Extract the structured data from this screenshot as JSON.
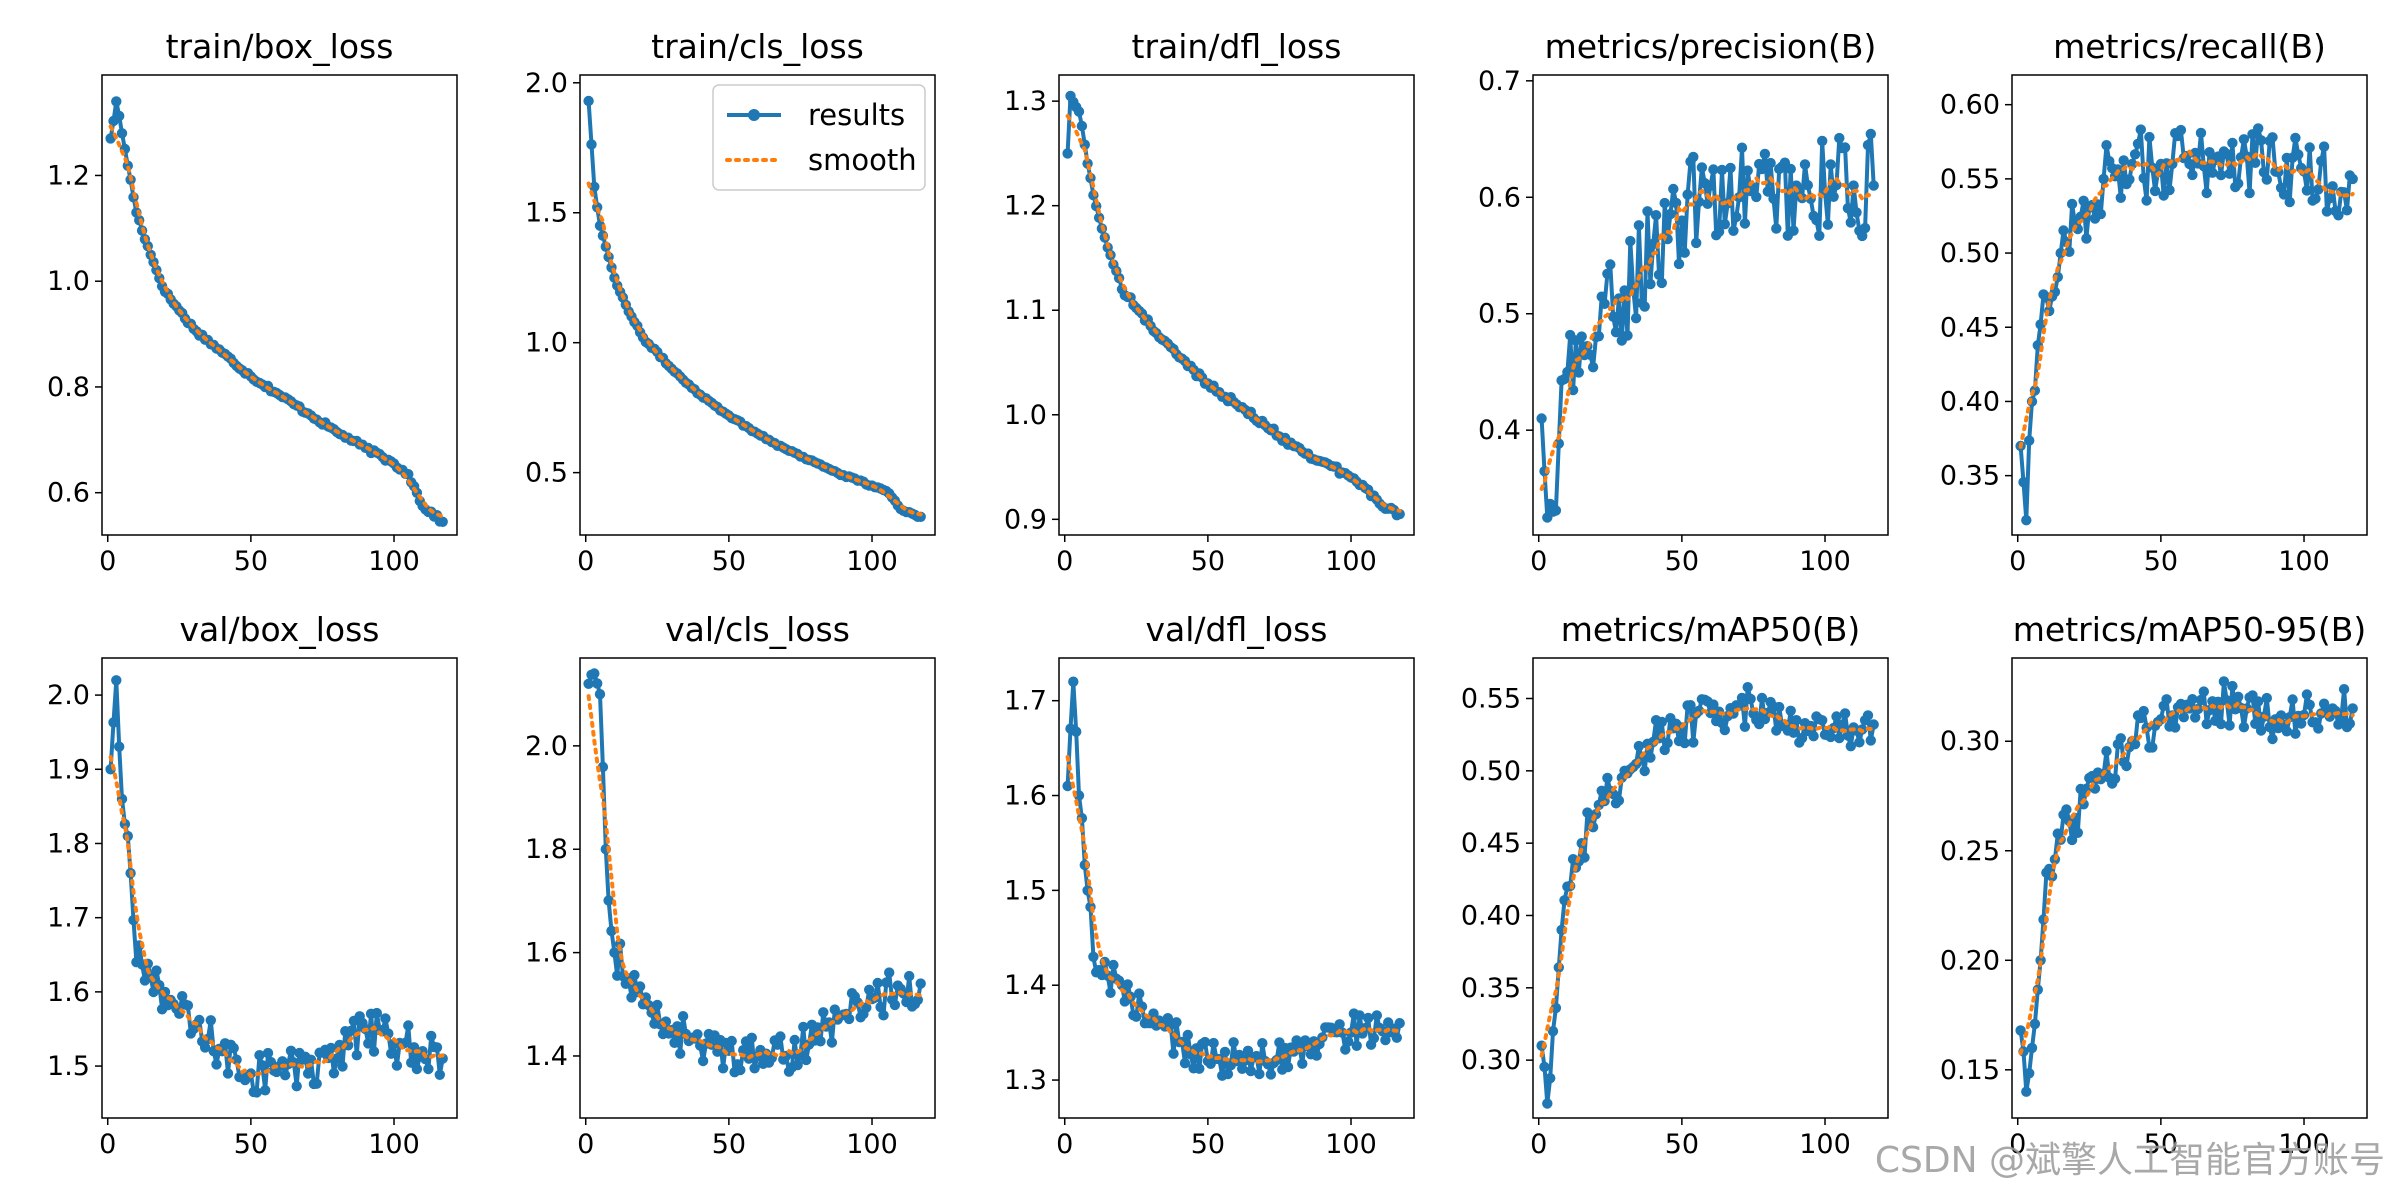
{
  "figure": {
    "watermark": "CSDN @斌擎人工智能官方账号",
    "colors": {
      "results": "#1f77b4",
      "smooth": "#ff7f0e",
      "axes": "#000000"
    }
  },
  "chart_data": [
    {
      "type": "line",
      "title": "train/box_loss",
      "xlim": [
        -2,
        122
      ],
      "ylim": [
        0.52,
        1.39
      ],
      "xticks": [
        0,
        50,
        100
      ],
      "yticks": [
        0.6,
        0.8,
        1.0,
        1.2
      ],
      "ytick_labels": [
        "0.6",
        "0.8",
        "1.0",
        "1.2"
      ],
      "decreasing": true,
      "noise": 0.004,
      "shape": [
        [
          1,
          1.27
        ],
        [
          3,
          1.34
        ],
        [
          6,
          1.25
        ],
        [
          10,
          1.13
        ],
        [
          15,
          1.05
        ],
        [
          20,
          0.98
        ],
        [
          30,
          0.91
        ],
        [
          40,
          0.865
        ],
        [
          50,
          0.82
        ],
        [
          60,
          0.785
        ],
        [
          70,
          0.75
        ],
        [
          80,
          0.715
        ],
        [
          90,
          0.685
        ],
        [
          100,
          0.655
        ],
        [
          105,
          0.635
        ],
        [
          110,
          0.575
        ],
        [
          117,
          0.545
        ]
      ]
    },
    {
      "type": "line",
      "title": "train/cls_loss",
      "xlim": [
        -2,
        122
      ],
      "ylim": [
        0.26,
        2.03
      ],
      "xticks": [
        0,
        50,
        100
      ],
      "yticks": [
        0.5,
        1.0,
        1.5,
        2.0
      ],
      "ytick_labels": [
        "0.5",
        "1.0",
        "1.5",
        "2.0"
      ],
      "decreasing": true,
      "noise": 0.005,
      "legend": {
        "entries": [
          "results",
          "smooth"
        ],
        "position": "upper-right"
      },
      "shape": [
        [
          1,
          1.93
        ],
        [
          3,
          1.6
        ],
        [
          5,
          1.45
        ],
        [
          10,
          1.25
        ],
        [
          15,
          1.12
        ],
        [
          20,
          1.02
        ],
        [
          30,
          0.9
        ],
        [
          40,
          0.8
        ],
        [
          50,
          0.72
        ],
        [
          60,
          0.65
        ],
        [
          70,
          0.59
        ],
        [
          80,
          0.54
        ],
        [
          90,
          0.49
        ],
        [
          100,
          0.45
        ],
        [
          106,
          0.42
        ],
        [
          110,
          0.36
        ],
        [
          117,
          0.33
        ]
      ]
    },
    {
      "type": "line",
      "title": "train/dfl_loss",
      "xlim": [
        -2,
        122
      ],
      "ylim": [
        0.885,
        1.325
      ],
      "xticks": [
        0,
        50,
        100
      ],
      "yticks": [
        0.9,
        1.0,
        1.1,
        1.2,
        1.3
      ],
      "ytick_labels": [
        "0.9",
        "1.0",
        "1.1",
        "1.2",
        "1.3"
      ],
      "decreasing": true,
      "noise": 0.003,
      "shape": [
        [
          1,
          1.25
        ],
        [
          2,
          1.305
        ],
        [
          5,
          1.29
        ],
        [
          10,
          1.21
        ],
        [
          15,
          1.16
        ],
        [
          20,
          1.12
        ],
        [
          30,
          1.085
        ],
        [
          40,
          1.055
        ],
        [
          50,
          1.03
        ],
        [
          60,
          1.01
        ],
        [
          70,
          0.99
        ],
        [
          80,
          0.97
        ],
        [
          90,
          0.955
        ],
        [
          100,
          0.94
        ],
        [
          105,
          0.93
        ],
        [
          110,
          0.915
        ],
        [
          117,
          0.905
        ]
      ]
    },
    {
      "type": "line",
      "title": "metrics/precision(B)",
      "xlim": [
        -2,
        122
      ],
      "ylim": [
        0.31,
        0.705
      ],
      "xticks": [
        0,
        50,
        100
      ],
      "yticks": [
        0.4,
        0.5,
        0.6,
        0.7
      ],
      "ytick_labels": [
        "0.4",
        "0.5",
        "0.6",
        "0.7"
      ],
      "decreasing": false,
      "noise": 0.045,
      "shape": [
        [
          1,
          0.41
        ],
        [
          3,
          0.325
        ],
        [
          5,
          0.33
        ],
        [
          10,
          0.45
        ],
        [
          20,
          0.48
        ],
        [
          30,
          0.52
        ],
        [
          40,
          0.56
        ],
        [
          50,
          0.58
        ],
        [
          60,
          0.61
        ],
        [
          70,
          0.6
        ],
        [
          80,
          0.605
        ],
        [
          90,
          0.61
        ],
        [
          100,
          0.605
        ],
        [
          110,
          0.61
        ],
        [
          117,
          0.61
        ]
      ]
    },
    {
      "type": "line",
      "title": "metrics/recall(B)",
      "xlim": [
        -2,
        122
      ],
      "ylim": [
        0.31,
        0.62
      ],
      "xticks": [
        0,
        50,
        100
      ],
      "yticks": [
        0.35,
        0.4,
        0.45,
        0.5,
        0.55,
        0.6
      ],
      "ytick_labels": [
        "0.35",
        "0.40",
        "0.45",
        "0.50",
        "0.55",
        "0.60"
      ],
      "decreasing": false,
      "noise": 0.025,
      "shape": [
        [
          1,
          0.37
        ],
        [
          3,
          0.32
        ],
        [
          5,
          0.4
        ],
        [
          10,
          0.47
        ],
        [
          15,
          0.5
        ],
        [
          20,
          0.52
        ],
        [
          30,
          0.55
        ],
        [
          40,
          0.56
        ],
        [
          50,
          0.56
        ],
        [
          60,
          0.56
        ],
        [
          70,
          0.565
        ],
        [
          80,
          0.565
        ],
        [
          90,
          0.555
        ],
        [
          100,
          0.555
        ],
        [
          110,
          0.545
        ],
        [
          117,
          0.55
        ]
      ]
    },
    {
      "type": "line",
      "title": "val/box_loss",
      "xlim": [
        -2,
        122
      ],
      "ylim": [
        1.43,
        2.05
      ],
      "xticks": [
        0,
        50,
        100
      ],
      "yticks": [
        1.5,
        1.6,
        1.7,
        1.8,
        1.9,
        2.0
      ],
      "ytick_labels": [
        "1.5",
        "1.6",
        "1.7",
        "1.8",
        "1.9",
        "2.0"
      ],
      "decreasing": false,
      "noise": 0.03,
      "shape": [
        [
          1,
          1.9
        ],
        [
          3,
          2.02
        ],
        [
          5,
          1.86
        ],
        [
          8,
          1.76
        ],
        [
          10,
          1.64
        ],
        [
          15,
          1.62
        ],
        [
          20,
          1.6
        ],
        [
          30,
          1.55
        ],
        [
          40,
          1.52
        ],
        [
          50,
          1.49
        ],
        [
          60,
          1.5
        ],
        [
          70,
          1.49
        ],
        [
          80,
          1.51
        ],
        [
          90,
          1.55
        ],
        [
          100,
          1.53
        ],
        [
          110,
          1.52
        ],
        [
          117,
          1.51
        ]
      ]
    },
    {
      "type": "line",
      "title": "val/cls_loss",
      "xlim": [
        -2,
        122
      ],
      "ylim": [
        1.28,
        2.17
      ],
      "xticks": [
        0,
        50,
        100
      ],
      "yticks": [
        1.4,
        1.6,
        1.8,
        2.0
      ],
      "ytick_labels": [
        "1.4",
        "1.6",
        "1.8",
        "2.0"
      ],
      "decreasing": false,
      "noise": 0.04,
      "shape": [
        [
          1,
          2.12
        ],
        [
          3,
          2.14
        ],
        [
          5,
          2.1
        ],
        [
          7,
          1.8
        ],
        [
          10,
          1.6
        ],
        [
          15,
          1.55
        ],
        [
          20,
          1.5
        ],
        [
          30,
          1.45
        ],
        [
          40,
          1.42
        ],
        [
          50,
          1.41
        ],
        [
          60,
          1.4
        ],
        [
          70,
          1.4
        ],
        [
          80,
          1.43
        ],
        [
          90,
          1.48
        ],
        [
          100,
          1.51
        ],
        [
          110,
          1.53
        ],
        [
          117,
          1.54
        ]
      ]
    },
    {
      "type": "line",
      "title": "val/dfl_loss",
      "xlim": [
        -2,
        122
      ],
      "ylim": [
        1.26,
        1.745
      ],
      "xticks": [
        0,
        50,
        100
      ],
      "yticks": [
        1.3,
        1.4,
        1.5,
        1.6,
        1.7
      ],
      "ytick_labels": [
        "1.3",
        "1.4",
        "1.5",
        "1.6",
        "1.7"
      ],
      "decreasing": false,
      "noise": 0.02,
      "shape": [
        [
          1,
          1.61
        ],
        [
          3,
          1.72
        ],
        [
          5,
          1.6
        ],
        [
          8,
          1.5
        ],
        [
          10,
          1.43
        ],
        [
          15,
          1.41
        ],
        [
          20,
          1.4
        ],
        [
          30,
          1.36
        ],
        [
          40,
          1.34
        ],
        [
          50,
          1.32
        ],
        [
          60,
          1.32
        ],
        [
          70,
          1.32
        ],
        [
          80,
          1.33
        ],
        [
          90,
          1.345
        ],
        [
          100,
          1.35
        ],
        [
          110,
          1.355
        ],
        [
          117,
          1.36
        ]
      ]
    },
    {
      "type": "line",
      "title": "metrics/mAP50(B)",
      "xlim": [
        -2,
        122
      ],
      "ylim": [
        0.26,
        0.578
      ],
      "xticks": [
        0,
        50,
        100
      ],
      "yticks": [
        0.3,
        0.35,
        0.4,
        0.45,
        0.5,
        0.55
      ],
      "ytick_labels": [
        "0.30",
        "0.35",
        "0.40",
        "0.45",
        "0.50",
        "0.55"
      ],
      "decreasing": false,
      "noise": 0.015,
      "shape": [
        [
          1,
          0.31
        ],
        [
          3,
          0.27
        ],
        [
          5,
          0.32
        ],
        [
          8,
          0.39
        ],
        [
          10,
          0.42
        ],
        [
          15,
          0.45
        ],
        [
          20,
          0.47
        ],
        [
          30,
          0.5
        ],
        [
          40,
          0.52
        ],
        [
          50,
          0.53
        ],
        [
          60,
          0.54
        ],
        [
          70,
          0.545
        ],
        [
          80,
          0.54
        ],
        [
          90,
          0.535
        ],
        [
          100,
          0.525
        ],
        [
          110,
          0.53
        ],
        [
          117,
          0.532
        ]
      ]
    },
    {
      "type": "line",
      "title": "metrics/mAP50-95(B)",
      "xlim": [
        -2,
        122
      ],
      "ylim": [
        0.128,
        0.338
      ],
      "xticks": [
        0,
        50,
        100
      ],
      "yticks": [
        0.15,
        0.2,
        0.25,
        0.3
      ],
      "ytick_labels": [
        "0.15",
        "0.20",
        "0.25",
        "0.30"
      ],
      "decreasing": false,
      "noise": 0.01,
      "shape": [
        [
          1,
          0.168
        ],
        [
          3,
          0.14
        ],
        [
          5,
          0.16
        ],
        [
          8,
          0.2
        ],
        [
          10,
          0.24
        ],
        [
          15,
          0.255
        ],
        [
          20,
          0.265
        ],
        [
          30,
          0.285
        ],
        [
          40,
          0.3
        ],
        [
          50,
          0.31
        ],
        [
          60,
          0.315
        ],
        [
          70,
          0.318
        ],
        [
          80,
          0.315
        ],
        [
          90,
          0.31
        ],
        [
          100,
          0.312
        ],
        [
          110,
          0.315
        ],
        [
          117,
          0.315
        ]
      ]
    }
  ]
}
